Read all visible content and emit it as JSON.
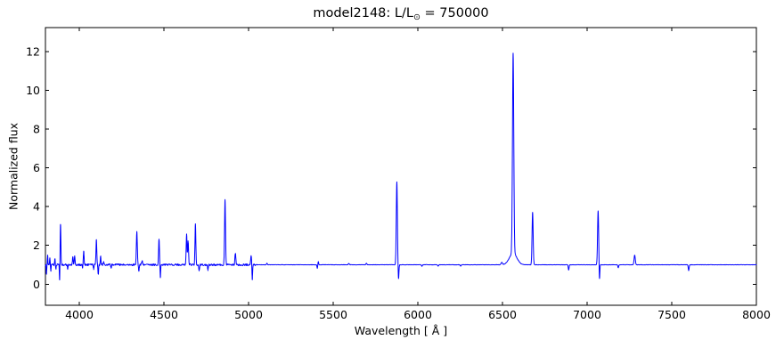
{
  "figure": {
    "background": "#ffffff",
    "frame_color": "#000000"
  },
  "title": {
    "prefix": "model2148: L/L",
    "sun_symbol": "⊙",
    "suffix": " = 750000"
  },
  "chart_data": {
    "type": "line",
    "title": "model2148: L/L⊙ = 750000",
    "xlabel": "Wavelength [ Å ]",
    "ylabel": "Normalized flux",
    "xlim": [
      3800,
      8000
    ],
    "ylim": [
      -1.09,
      13.24
    ],
    "xticks": [
      4000,
      4500,
      5000,
      5500,
      6000,
      6500,
      7000,
      7500,
      8000
    ],
    "yticks": [
      0,
      2,
      4,
      6,
      8,
      10,
      12
    ],
    "grid": false,
    "legend": null,
    "line_color": "#0000ff",
    "continuum_flux": 1.0,
    "noise": {
      "blue_region_end": 5050,
      "blue_amplitude": 0.05,
      "red_amplitude": 0.009
    },
    "features_note": "gaussian components: peak_flux = absolute flux at line center (continuum = 1.0); peak_flux < 1 means absorption dip; width = gaussian sigma in Angstrom",
    "features": [
      {
        "wavelength": 3806,
        "peak_flux": 0.55,
        "width": 1.5
      },
      {
        "wavelength": 3813,
        "peak_flux": 1.5,
        "width": 1.5
      },
      {
        "wavelength": 3826,
        "peak_flux": 1.35,
        "width": 1.6
      },
      {
        "wavelength": 3832,
        "peak_flux": 0.7,
        "width": 1.5
      },
      {
        "wavelength": 3856,
        "peak_flux": 1.3,
        "width": 1.6
      },
      {
        "wavelength": 3862,
        "peak_flux": 0.8,
        "width": 1.5
      },
      {
        "wavelength": 3884,
        "peak_flux": 0.1,
        "width": 1.6
      },
      {
        "wavelength": 3889,
        "peak_flux": 3.12,
        "width": 2.2
      },
      {
        "wavelength": 3931,
        "peak_flux": 0.8,
        "width": 1.8
      },
      {
        "wavelength": 3962,
        "peak_flux": 1.38,
        "width": 2.4
      },
      {
        "wavelength": 3973,
        "peak_flux": 1.42,
        "width": 2.2
      },
      {
        "wavelength": 4020,
        "peak_flux": 0.85,
        "width": 2.0
      },
      {
        "wavelength": 4026,
        "peak_flux": 1.68,
        "width": 2.4
      },
      {
        "wavelength": 4085,
        "peak_flux": 0.8,
        "width": 2.0
      },
      {
        "wavelength": 4101,
        "peak_flux": 2.25,
        "width": 2.5
      },
      {
        "wavelength": 4112,
        "peak_flux": 0.5,
        "width": 2.0
      },
      {
        "wavelength": 4126,
        "peak_flux": 1.45,
        "width": 2.0
      },
      {
        "wavelength": 4144,
        "peak_flux": 1.12,
        "width": 2.0
      },
      {
        "wavelength": 4188,
        "peak_flux": 0.85,
        "width": 2.0
      },
      {
        "wavelength": 4340,
        "peak_flux": 2.67,
        "width": 2.8
      },
      {
        "wavelength": 4352,
        "peak_flux": 0.7,
        "width": 2.2
      },
      {
        "wavelength": 4372,
        "peak_flux": 1.2,
        "width": 3.0
      },
      {
        "wavelength": 4471,
        "peak_flux": 2.32,
        "width": 2.5
      },
      {
        "wavelength": 4479,
        "peak_flux": 0.36,
        "width": 1.8
      },
      {
        "wavelength": 4634,
        "peak_flux": 2.56,
        "width": 2.6
      },
      {
        "wavelength": 4643,
        "peak_flux": 2.2,
        "width": 2.6
      },
      {
        "wavelength": 4686,
        "peak_flux": 3.08,
        "width": 2.5
      },
      {
        "wavelength": 4708,
        "peak_flux": 0.72,
        "width": 2.4
      },
      {
        "wavelength": 4760,
        "peak_flux": 0.74,
        "width": 2.2
      },
      {
        "wavelength": 4861,
        "peak_flux": 4.32,
        "width": 2.8
      },
      {
        "wavelength": 4922,
        "peak_flux": 1.6,
        "width": 2.6
      },
      {
        "wavelength": 5015,
        "peak_flux": 1.45,
        "width": 2.6
      },
      {
        "wavelength": 5022,
        "peak_flux": 0.26,
        "width": 1.8
      },
      {
        "wavelength": 5109,
        "peak_flux": 1.08,
        "width": 2.5
      },
      {
        "wavelength": 5406,
        "peak_flux": 0.82,
        "width": 2.0
      },
      {
        "wavelength": 5412,
        "peak_flux": 1.16,
        "width": 2.0
      },
      {
        "wavelength": 5592,
        "peak_flux": 1.06,
        "width": 3.0
      },
      {
        "wavelength": 5696,
        "peak_flux": 1.07,
        "width": 3.0
      },
      {
        "wavelength": 5876,
        "peak_flux": 5.27,
        "width": 3.2
      },
      {
        "wavelength": 5886,
        "peak_flux": 0.26,
        "width": 2.2
      },
      {
        "wavelength": 6024,
        "peak_flux": 0.92,
        "width": 2.5
      },
      {
        "wavelength": 6120,
        "peak_flux": 0.93,
        "width": 2.5
      },
      {
        "wavelength": 6253,
        "peak_flux": 0.93,
        "width": 2.5
      },
      {
        "wavelength": 6496,
        "peak_flux": 1.12,
        "width": 4.0
      },
      {
        "wavelength": 6563,
        "peak_flux": 11.32,
        "width": 3.8
      },
      {
        "wavelength": 6563,
        "peak_flux": 1.6,
        "width": 22.0
      },
      {
        "wavelength": 6678,
        "peak_flux": 3.7,
        "width": 3.2
      },
      {
        "wavelength": 6891,
        "peak_flux": 0.73,
        "width": 2.4
      },
      {
        "wavelength": 7065,
        "peak_flux": 3.78,
        "width": 3.2
      },
      {
        "wavelength": 7073,
        "peak_flux": 0.18,
        "width": 2.0
      },
      {
        "wavelength": 7184,
        "peak_flux": 0.85,
        "width": 2.4
      },
      {
        "wavelength": 7281,
        "peak_flux": 1.5,
        "width": 3.5
      },
      {
        "wavelength": 7600,
        "peak_flux": 0.7,
        "width": 2.4
      }
    ]
  }
}
